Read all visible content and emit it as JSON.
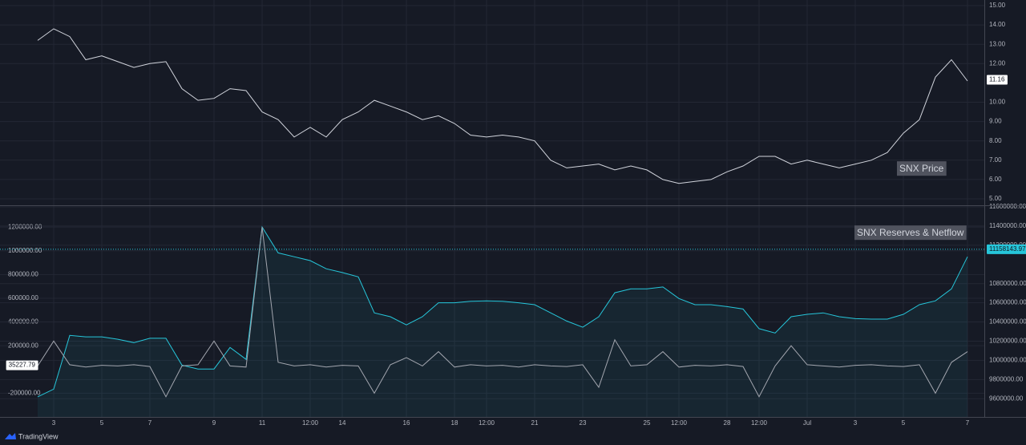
{
  "chart_data": [
    {
      "type": "line",
      "title": "SNX Price",
      "series": [
        {
          "color": "#d1d4dc",
          "last_value": 11.16,
          "values": [
            13.2,
            13.8,
            13.4,
            12.2,
            12.4,
            12.1,
            11.8,
            12.0,
            12.1,
            10.7,
            10.1,
            10.2,
            10.7,
            10.6,
            9.5,
            9.1,
            8.2,
            8.7,
            8.2,
            9.1,
            9.5,
            10.1,
            9.8,
            9.5,
            9.1,
            9.3,
            8.9,
            8.3,
            8.2,
            8.3,
            8.2,
            8.0,
            7.0,
            6.6,
            6.7,
            6.8,
            6.5,
            6.7,
            6.5,
            6.0,
            5.8,
            5.9,
            6.0,
            6.4,
            6.7,
            7.2,
            7.2,
            6.8,
            7.0,
            6.8,
            6.6,
            6.8,
            7.0,
            7.4,
            8.4,
            9.1,
            11.3,
            12.2,
            11.1
          ]
        }
      ],
      "y2lim": [
        4.71,
        15.29
      ],
      "y2ticks": [
        {
          "value": 15,
          "label": "15.00"
        },
        {
          "value": 14,
          "label": "14.00"
        },
        {
          "value": 13,
          "label": "13.00"
        },
        {
          "value": 12,
          "label": "12.00"
        },
        {
          "value": 10,
          "label": "10.00"
        },
        {
          "value": 9,
          "label": "9.00"
        },
        {
          "value": 8,
          "label": "8.00"
        },
        {
          "value": 7,
          "label": "7.00"
        },
        {
          "value": 6,
          "label": "6.00"
        },
        {
          "value": 5,
          "label": "5.00"
        }
      ],
      "grid": true
    },
    {
      "type": "line",
      "title": "SNX Reserves & Netflow",
      "categories": [
        null,
        "3",
        null,
        null,
        "5",
        null,
        null,
        "7",
        null,
        null,
        null,
        "9",
        null,
        null,
        "11",
        null,
        null,
        "12:00",
        null,
        "14",
        null,
        null,
        null,
        "16",
        null,
        null,
        "18",
        null,
        "12:00",
        null,
        null,
        "21",
        null,
        null,
        "23",
        null,
        null,
        null,
        "25",
        null,
        "12:00",
        null,
        null,
        "28",
        null,
        "12:00",
        null,
        null,
        "Jul",
        null,
        null,
        "3",
        null,
        null,
        "5",
        null,
        null,
        null,
        "7"
      ],
      "series": [
        {
          "color": "#26c6da",
          "axis": "y2",
          "area": true,
          "last_value": 11158143.97,
          "values": [
            9620000,
            9700000,
            10260000,
            10245000,
            10245000,
            10220000,
            10185000,
            10230000,
            10230000,
            9950000,
            9910000,
            9910000,
            10135000,
            10010000,
            11390000,
            11120000,
            11080000,
            11040000,
            10955000,
            10915000,
            10870000,
            10495000,
            10455000,
            10370000,
            10455000,
            10600000,
            10600000,
            10615000,
            10620000,
            10615000,
            10600000,
            10580000,
            10495000,
            10410000,
            10345000,
            10455000,
            10705000,
            10745000,
            10745000,
            10765000,
            10645000,
            10580000,
            10580000,
            10560000,
            10535000,
            10330000,
            10285000,
            10455000,
            10480000,
            10495000,
            10455000,
            10435000,
            10430000,
            10430000,
            10480000,
            10580000,
            10620000,
            10745000,
            11080000
          ]
        },
        {
          "color": "#a3a6af",
          "last_value": 35227.79,
          "values": [
            30000,
            240000,
            40000,
            20000,
            35000,
            30000,
            40000,
            25000,
            -230000,
            30000,
            40000,
            240000,
            30000,
            20000,
            1200000,
            60000,
            30000,
            40000,
            20000,
            35000,
            30000,
            -200000,
            40000,
            100000,
            30000,
            150000,
            20000,
            40000,
            30000,
            35000,
            20000,
            40000,
            30000,
            25000,
            40000,
            -150000,
            250000,
            30000,
            40000,
            150000,
            20000,
            35000,
            30000,
            40000,
            25000,
            -230000,
            30000,
            200000,
            40000,
            30000,
            20000,
            35000,
            40000,
            30000,
            25000,
            40000,
            -200000,
            60000,
            150000
          ]
        }
      ],
      "ylim": [
        -400000,
        1370000
      ],
      "yticks": [
        {
          "value": 1200000,
          "label": "1200000.00"
        },
        {
          "value": 1000000,
          "label": "1000000.00"
        },
        {
          "value": 800000,
          "label": "800000.00"
        },
        {
          "value": 600000,
          "label": "600000.00"
        },
        {
          "value": 400000,
          "label": "400000.00"
        },
        {
          "value": 200000,
          "label": "200000.00"
        },
        {
          "value": -200000,
          "label": "-200000.00"
        }
      ],
      "y2lim": [
        9410000,
        11600000
      ],
      "y2ticks": [
        {
          "value": 11600000,
          "label": "11600000.00"
        },
        {
          "value": 11400000,
          "label": "11400000.00"
        },
        {
          "value": 11200000,
          "label": "11200000.00"
        },
        {
          "value": 10800000,
          "label": "10800000.00"
        },
        {
          "value": 10600000,
          "label": "10600000.00"
        },
        {
          "value": 10400000,
          "label": "10400000.00"
        },
        {
          "value": 10200000,
          "label": "10200000.00"
        },
        {
          "value": 10000000,
          "label": "10000000.00"
        },
        {
          "value": 9800000,
          "label": "9800000.00"
        },
        {
          "value": 9600000,
          "label": "9600000.00"
        }
      ],
      "grid": true
    }
  ],
  "brand": "TradingView"
}
